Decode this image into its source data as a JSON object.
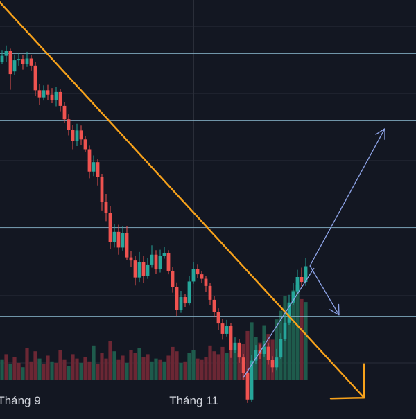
{
  "theme": {
    "background": "#131722",
    "grid": "#2a2e39",
    "up_candle": "#26a69a",
    "down_candle": "#ef5350",
    "up_volume": "#1e5b4c",
    "down_volume": "#6b2734",
    "level_line": "#8fbfd6",
    "trendline": "#f7a21b",
    "projection_arrow": "#8ea4e8",
    "axis_text": "#d1d4dc"
  },
  "chart_data": {
    "type": "candlestick",
    "x_tick_labels": [
      "Tháng 9",
      "Tháng 11"
    ],
    "x_tick_candle_index": [
      4,
      46
    ],
    "grid": true,
    "horizontal_levels": [
      100,
      85.2,
      66.5,
      61.2,
      53.9,
      41.3,
      27.0
    ],
    "ylim": [
      19,
      112
    ],
    "candles": [
      [
        98.2,
        99.5,
        100.8,
        97.6
      ],
      [
        99.5,
        100.6,
        101.8,
        98.2
      ],
      [
        100.6,
        95.4,
        101.1,
        91.9
      ],
      [
        96.0,
        98.5,
        99.8,
        95.2
      ],
      [
        98.5,
        98.8,
        100.2,
        97.3
      ],
      [
        98.8,
        97.6,
        99.7,
        96.4
      ],
      [
        97.6,
        98.9,
        100.4,
        97.0
      ],
      [
        98.9,
        97.3,
        99.6,
        96.2
      ],
      [
        97.3,
        91.8,
        98.2,
        90.5
      ],
      [
        91.8,
        90.2,
        93.1,
        88.6
      ],
      [
        90.2,
        91.8,
        92.9,
        89.5
      ],
      [
        91.8,
        90.8,
        93.0,
        89.6
      ],
      [
        90.8,
        89.6,
        92.3,
        88.9
      ],
      [
        89.6,
        91.4,
        92.5,
        88.2
      ],
      [
        91.4,
        88.3,
        92.0,
        87.1
      ],
      [
        88.3,
        85.3,
        89.1,
        84.5
      ],
      [
        85.3,
        83.0,
        86.4,
        81.7
      ],
      [
        83.0,
        80.4,
        84.1,
        78.6
      ],
      [
        80.4,
        82.8,
        84.3,
        79.3
      ],
      [
        82.8,
        80.8,
        83.9,
        79.5
      ],
      [
        80.8,
        78.6,
        81.6,
        77.9
      ],
      [
        78.6,
        73.6,
        79.4,
        72.1
      ],
      [
        73.6,
        75.7,
        77.2,
        72.6
      ],
      [
        75.7,
        72.4,
        76.4,
        70.5
      ],
      [
        72.4,
        66.8,
        73.1,
        64.9
      ],
      [
        66.8,
        64.4,
        68.6,
        62.5
      ],
      [
        64.4,
        57.8,
        65.9,
        56.2
      ],
      [
        57.8,
        60.1,
        61.9,
        56.6
      ],
      [
        60.1,
        56.6,
        61.7,
        55.0
      ],
      [
        56.6,
        59.8,
        61.4,
        55.9
      ],
      [
        59.8,
        54.4,
        61.4,
        53.8
      ],
      [
        54.4,
        53.7,
        55.8,
        52.3
      ],
      [
        53.7,
        49.9,
        54.7,
        48.1
      ],
      [
        49.9,
        53.4,
        55.6,
        48.9
      ],
      [
        53.4,
        50.3,
        54.8,
        48.6
      ],
      [
        50.3,
        52.8,
        54.3,
        49.6
      ],
      [
        52.8,
        55.0,
        57.1,
        52.1
      ],
      [
        55.0,
        51.8,
        56.0,
        50.7
      ],
      [
        51.8,
        54.7,
        56.1,
        51.0
      ],
      [
        54.7,
        55.3,
        56.7,
        54.1
      ],
      [
        55.3,
        51.4,
        56.0,
        50.6
      ],
      [
        51.4,
        47.8,
        52.3,
        46.5
      ],
      [
        47.8,
        42.7,
        48.8,
        41.3
      ],
      [
        42.7,
        45.5,
        46.9,
        42.0
      ],
      [
        45.5,
        44.1,
        46.2,
        43.2
      ],
      [
        44.1,
        49.0,
        50.2,
        43.6
      ],
      [
        49.0,
        51.8,
        53.4,
        48.5
      ],
      [
        51.8,
        50.6,
        52.9,
        49.7
      ],
      [
        50.6,
        49.6,
        51.3,
        48.6
      ],
      [
        49.6,
        48.0,
        50.3,
        46.7
      ],
      [
        48.0,
        44.9,
        48.7,
        43.8
      ],
      [
        44.9,
        42.1,
        45.8,
        41.0
      ],
      [
        42.1,
        39.6,
        43.0,
        38.2
      ],
      [
        39.6,
        37.3,
        40.6,
        36.0
      ],
      [
        37.3,
        39.0,
        40.4,
        36.7
      ],
      [
        39.0,
        33.6,
        39.7,
        31.9
      ],
      [
        33.6,
        35.3,
        36.5,
        33.1
      ],
      [
        35.3,
        32.0,
        36.1,
        30.8
      ],
      [
        32.0,
        28.5,
        32.8,
        26.9
      ],
      [
        28.5,
        22.6,
        29.4,
        21.8
      ],
      [
        22.6,
        31.3,
        32.5,
        22.1
      ],
      [
        31.3,
        33.6,
        34.8,
        30.6
      ],
      [
        33.6,
        32.8,
        34.9,
        31.7
      ],
      [
        32.8,
        34.4,
        35.6,
        32.2
      ],
      [
        34.4,
        31.4,
        35.3,
        30.4
      ],
      [
        31.4,
        29.8,
        32.3,
        28.7
      ],
      [
        29.8,
        32.0,
        33.9,
        29.2
      ],
      [
        32.0,
        36.2,
        37.4,
        31.6
      ],
      [
        36.2,
        39.8,
        41.6,
        35.6
      ],
      [
        39.8,
        44.3,
        46.0,
        39.3
      ],
      [
        44.3,
        46.8,
        48.7,
        43.8
      ],
      [
        46.8,
        50.0,
        51.6,
        46.2
      ],
      [
        50.0,
        48.9,
        52.1,
        47.9
      ],
      [
        48.9,
        52.4,
        54.2,
        48.0
      ]
    ],
    "volume": [
      [
        14,
        "up"
      ],
      [
        18,
        "down"
      ],
      [
        11,
        "up"
      ],
      [
        16,
        "down"
      ],
      [
        12,
        "down"
      ],
      [
        9,
        "up"
      ],
      [
        22,
        "down"
      ],
      [
        13,
        "down"
      ],
      [
        20,
        "down"
      ],
      [
        15,
        "up"
      ],
      [
        11,
        "down"
      ],
      [
        17,
        "down"
      ],
      [
        13,
        "up"
      ],
      [
        12,
        "down"
      ],
      [
        21,
        "down"
      ],
      [
        14,
        "down"
      ],
      [
        10,
        "up"
      ],
      [
        18,
        "down"
      ],
      [
        15,
        "down"
      ],
      [
        12,
        "up"
      ],
      [
        16,
        "down"
      ],
      [
        13,
        "down"
      ],
      [
        24,
        "up"
      ],
      [
        11,
        "down"
      ],
      [
        19,
        "down"
      ],
      [
        15,
        "down"
      ],
      [
        27,
        "down"
      ],
      [
        20,
        "up"
      ],
      [
        14,
        "down"
      ],
      [
        17,
        "down"
      ],
      [
        12,
        "up"
      ],
      [
        21,
        "down"
      ],
      [
        19,
        "down"
      ],
      [
        22,
        "up"
      ],
      [
        16,
        "down"
      ],
      [
        18,
        "down"
      ],
      [
        13,
        "up"
      ],
      [
        15,
        "up"
      ],
      [
        14,
        "down"
      ],
      [
        13,
        "up"
      ],
      [
        17,
        "down"
      ],
      [
        23,
        "down"
      ],
      [
        20,
        "down"
      ],
      [
        12,
        "up"
      ],
      [
        13,
        "down"
      ],
      [
        19,
        "up"
      ],
      [
        21,
        "up"
      ],
      [
        15,
        "down"
      ],
      [
        14,
        "down"
      ],
      [
        16,
        "down"
      ],
      [
        24,
        "down"
      ],
      [
        20,
        "down"
      ],
      [
        18,
        "down"
      ],
      [
        23,
        "down"
      ],
      [
        19,
        "up"
      ],
      [
        26,
        "down"
      ],
      [
        21,
        "up"
      ],
      [
        19,
        "down"
      ],
      [
        25,
        "down"
      ],
      [
        34,
        "down"
      ],
      [
        40,
        "up"
      ],
      [
        30,
        "up"
      ],
      [
        26,
        "down"
      ],
      [
        38,
        "up"
      ],
      [
        32,
        "down"
      ],
      [
        28,
        "down"
      ],
      [
        42,
        "up"
      ],
      [
        48,
        "up"
      ],
      [
        58,
        "up"
      ],
      [
        52,
        "up"
      ],
      [
        62,
        "up"
      ],
      [
        66,
        "up"
      ],
      [
        56,
        "down"
      ],
      [
        54,
        "up"
      ]
    ],
    "annotations": {
      "trendline": {
        "from_candle": -4,
        "from_price": 115.0,
        "to_candle": 87,
        "to_price": 23.0
      },
      "corner_arrow": {
        "tip_candle": 87,
        "tip_price": 23.0,
        "left_candle": 79,
        "top_price": 30.5
      },
      "channel_line": {
        "from_candle": 58,
        "from_price": 27.5,
        "to_candle": 75,
        "to_price": 52.0
      },
      "up_arrow": {
        "from_candle": 74,
        "from_price": 52.5,
        "to_candle": 92,
        "to_price": 83.2
      },
      "down_arrow": {
        "from_candle": 74,
        "from_price": 52.5,
        "to_candle": 81,
        "to_price": 41.5
      }
    }
  }
}
